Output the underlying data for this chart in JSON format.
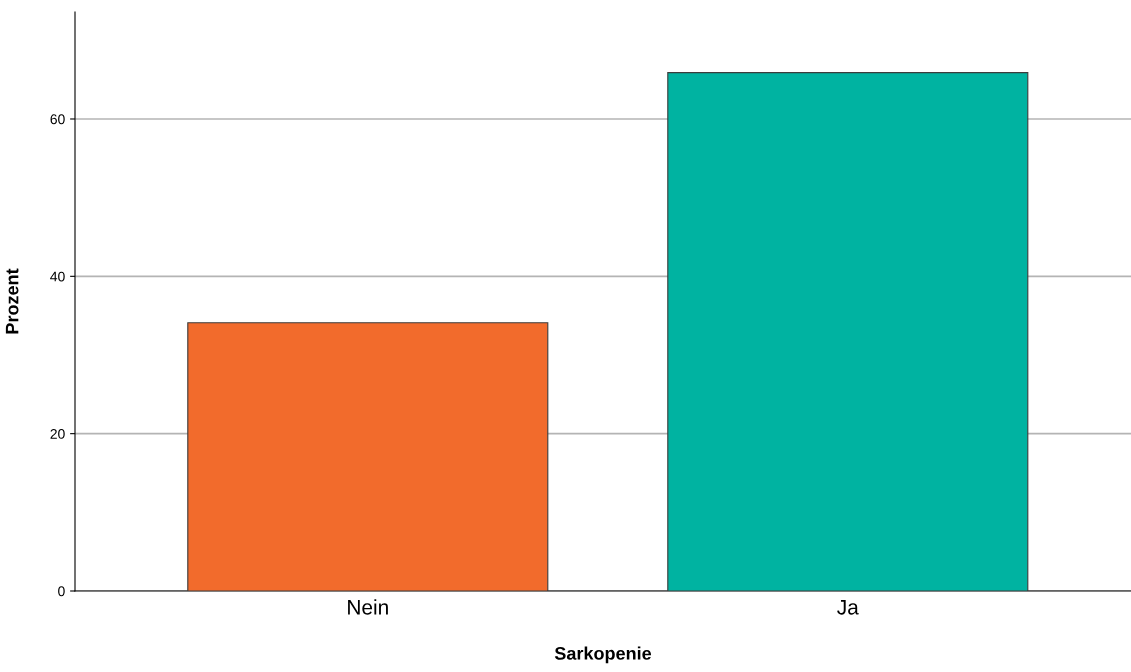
{
  "chart_data": {
    "type": "bar",
    "xlabel": "Sarkopenie",
    "ylabel": "Prozent",
    "categories": [
      "Nein",
      "Ja"
    ],
    "values": [
      34.1,
      65.9
    ],
    "colors": [
      "#f26b2c",
      "#00b3a1"
    ],
    "ylim": [
      0,
      73.6
    ],
    "yticks": [
      0,
      20,
      40,
      60
    ],
    "grid": "y"
  }
}
